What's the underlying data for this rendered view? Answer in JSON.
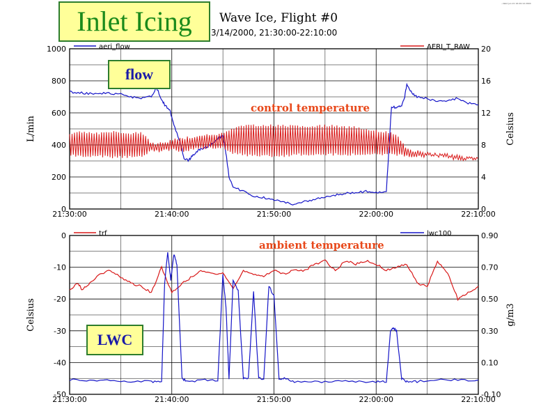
{
  "header": {
    "banner": "Inlet Icing",
    "title": "Wave Ice, Flight #0",
    "subtitle": "3/14/2000, 21:30:00-22:10:00",
    "credit": "~Wed Jun 21 16:29:14 2000"
  },
  "colors": {
    "blue": "#1515c8",
    "red": "#d81818",
    "annotation": "#e8481a",
    "grid": "#000000"
  },
  "chart_data": [
    {
      "type": "line",
      "name": "top",
      "tag": "flow",
      "annotation": "control temperature",
      "xlabel": "",
      "ylabel_left": "L/min",
      "ylabel_right": "Celsius",
      "x_ticks": [
        "21:30:00",
        "21:40:00",
        "21:50:00",
        "22:00:00",
        "22:10:00"
      ],
      "xlim_minutes": [
        0,
        40
      ],
      "ylim_left": [
        0,
        1000
      ],
      "yticks_left": [
        0,
        200,
        400,
        600,
        800,
        1000
      ],
      "ylim_right": [
        0,
        20
      ],
      "yticks_right": [
        0,
        4,
        8,
        12,
        16,
        20
      ],
      "series": [
        {
          "name": "aeri_flow",
          "axis": "left",
          "color": "#1515c8",
          "x": [
            0,
            1,
            2,
            3,
            4,
            5,
            6,
            7,
            8,
            8.5,
            9,
            9.3,
            9.8,
            10.2,
            10.8,
            11.2,
            11.6,
            12,
            12.5,
            13,
            13.5,
            14,
            14.5,
            15,
            15.3,
            15.6,
            16,
            17,
            18,
            19,
            20,
            21,
            22,
            23,
            24,
            25,
            26,
            27,
            28,
            29,
            30,
            31,
            31.5,
            32,
            32.5,
            32.8,
            33,
            33.5,
            34,
            35,
            36,
            37,
            38,
            39,
            40
          ],
          "y": [
            730,
            725,
            720,
            725,
            720,
            715,
            700,
            690,
            700,
            760,
            680,
            650,
            620,
            520,
            420,
            320,
            300,
            330,
            360,
            380,
            390,
            410,
            440,
            460,
            350,
            200,
            140,
            110,
            80,
            70,
            60,
            40,
            30,
            45,
            60,
            75,
            85,
            100,
            100,
            110,
            100,
            110,
            640,
            630,
            650,
            700,
            780,
            720,
            700,
            690,
            670,
            680,
            690,
            660,
            650
          ]
        },
        {
          "name": "AERI_T_RAW",
          "axis": "right",
          "color": "#d81818",
          "band": true,
          "x": [
            0,
            1,
            2,
            3,
            4,
            5,
            6,
            7,
            8,
            9,
            10,
            11,
            12,
            13,
            14,
            15,
            16,
            17,
            18,
            19,
            20,
            21,
            22,
            23,
            24,
            25,
            26,
            27,
            28,
            29,
            30,
            31,
            32,
            33,
            34,
            35,
            36,
            37,
            38,
            39,
            40
          ],
          "y_low": [
            6.8,
            6.5,
            6.5,
            6.6,
            6.4,
            6.5,
            6.5,
            6.6,
            7.2,
            7.2,
            7.4,
            7.2,
            7.4,
            7.6,
            7.6,
            7.6,
            7.0,
            6.8,
            6.6,
            6.6,
            6.6,
            6.6,
            6.8,
            6.8,
            6.8,
            6.8,
            6.8,
            6.8,
            6.8,
            6.8,
            6.8,
            6.8,
            6.8,
            6.6,
            6.6,
            6.6,
            6.6,
            6.4,
            6.2,
            6.2,
            6.2
          ],
          "y_high": [
            9.4,
            9.6,
            9.6,
            9.4,
            9.6,
            9.6,
            9.4,
            9.6,
            8.2,
            8.2,
            8.6,
            8.8,
            9.0,
            9.2,
            9.2,
            9.4,
            10.0,
            10.4,
            10.4,
            10.4,
            10.4,
            10.4,
            10.4,
            10.2,
            10.4,
            10.4,
            10.4,
            10.2,
            10.2,
            10.0,
            9.8,
            9.6,
            9.4,
            7.4,
            7.2,
            7.0,
            6.8,
            6.8,
            6.6,
            6.4,
            6.4
          ]
        }
      ]
    },
    {
      "type": "line",
      "name": "bottom",
      "tag": "LWC",
      "annotation": "ambient temperature",
      "xlabel": "",
      "ylabel_left": "Celsius",
      "ylabel_right": "g/m3",
      "x_ticks": [
        "21:30:00",
        "21:40:00",
        "21:50:00",
        "22:00:00",
        "22:10:00"
      ],
      "xlim_minutes": [
        0,
        40
      ],
      "ylim_left": [
        -50,
        0
      ],
      "yticks_left": [
        -50,
        -40,
        -30,
        -20,
        -10,
        0
      ],
      "ylim_right": [
        -0.1,
        0.9
      ],
      "yticks_right": [
        -0.1,
        0.1,
        0.3,
        0.5,
        0.7,
        0.9
      ],
      "series": [
        {
          "name": "trf",
          "axis": "left",
          "color": "#d81818",
          "x": [
            0,
            0.8,
            1.2,
            2,
            3,
            4,
            5,
            6,
            7,
            8,
            9,
            10,
            11,
            12,
            13,
            14,
            15,
            16,
            17,
            18,
            19,
            20,
            21,
            22,
            23,
            24,
            25,
            26,
            27,
            28,
            29,
            30,
            31,
            32,
            33,
            34,
            35,
            36,
            37,
            38,
            39,
            40
          ],
          "y": [
            -17,
            -15,
            -17,
            -15,
            -12,
            -11,
            -13,
            -15,
            -16,
            -18,
            -10,
            -18,
            -15,
            -13,
            -11,
            -12,
            -12,
            -17,
            -11,
            -12,
            -13,
            -11,
            -12,
            -11,
            -11,
            -9,
            -8,
            -11,
            -8,
            -9,
            -8,
            -9,
            -11,
            -10,
            -9,
            -15,
            -16,
            -8,
            -12,
            -20,
            -18,
            -16
          ]
        },
        {
          "name": "lwc100",
          "axis": "right",
          "color": "#1515c8",
          "x": [
            0,
            2,
            4,
            6,
            8,
            9,
            9.3,
            9.6,
            9.9,
            10.2,
            10.5,
            11,
            11.5,
            13,
            14.5,
            15,
            15.3,
            15.6,
            16,
            16.5,
            17,
            17.5,
            18,
            18.5,
            19,
            19.5,
            20,
            20.5,
            21,
            22,
            24,
            26,
            28,
            30,
            31,
            31.4,
            31.7,
            32,
            32.5,
            33,
            34,
            36,
            38,
            40
          ],
          "y": [
            -0.01,
            -0.01,
            -0.01,
            -0.02,
            -0.02,
            -0.02,
            0.6,
            0.8,
            0.62,
            0.78,
            0.72,
            0.0,
            -0.02,
            -0.01,
            -0.01,
            0.65,
            0.45,
            0.0,
            0.62,
            0.55,
            0.0,
            0.0,
            0.55,
            0.0,
            0.0,
            0.58,
            0.52,
            0.0,
            0.0,
            -0.02,
            -0.02,
            -0.02,
            -0.02,
            -0.02,
            -0.02,
            0.3,
            0.32,
            0.3,
            0.0,
            -0.02,
            -0.02,
            -0.01,
            -0.01,
            -0.01
          ]
        }
      ]
    }
  ]
}
